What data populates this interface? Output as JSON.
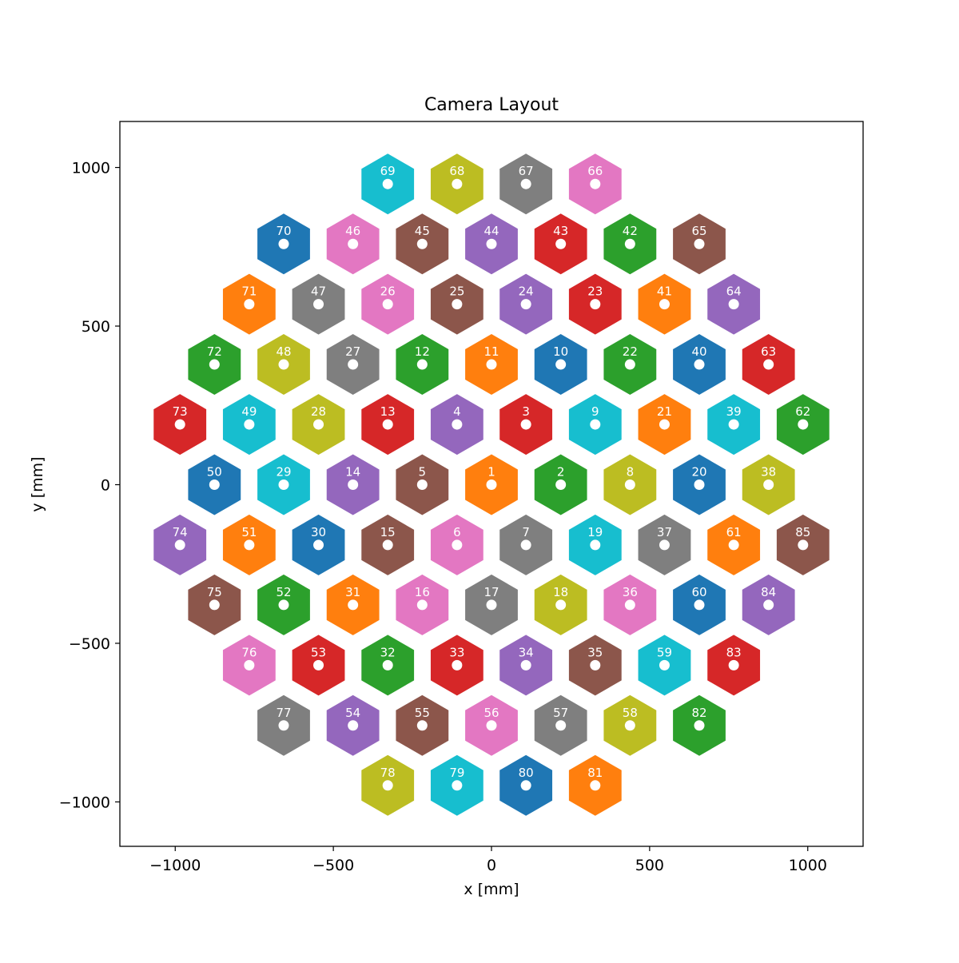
{
  "chart_data": {
    "type": "scatter",
    "title": "Camera Layout",
    "xlabel": "x [mm]",
    "ylabel": "y [mm]",
    "xlim": [
      -1175,
      1175
    ],
    "ylim": [
      -1140,
      1145
    ],
    "xticks": [
      -1000,
      -500,
      0,
      500,
      1000
    ],
    "yticks": [
      -1000,
      -500,
      0,
      500,
      1000
    ],
    "xtick_labels": [
      "−1000",
      "−500",
      "0",
      "500",
      "1000"
    ],
    "ytick_labels": [
      "−1000",
      "−500",
      "0",
      "500",
      "1000"
    ],
    "grid": false,
    "marker_shape": "hexagon",
    "marker_center_color": "#ffffff",
    "pixels": [
      {
        "id": "1",
        "x": 0,
        "y": 0,
        "color": "#ff7f0e"
      },
      {
        "id": "2",
        "x": 219,
        "y": 0,
        "color": "#2ca02c"
      },
      {
        "id": "3",
        "x": 109,
        "y": 190,
        "color": "#d62728"
      },
      {
        "id": "4",
        "x": -109,
        "y": 190,
        "color": "#9467bd"
      },
      {
        "id": "5",
        "x": -219,
        "y": 0,
        "color": "#8c564b"
      },
      {
        "id": "6",
        "x": -109,
        "y": -190,
        "color": "#e377c2"
      },
      {
        "id": "7",
        "x": 109,
        "y": -190,
        "color": "#7f7f7f"
      },
      {
        "id": "8",
        "x": 438,
        "y": 0,
        "color": "#bcbd22"
      },
      {
        "id": "9",
        "x": 328,
        "y": 190,
        "color": "#17becf"
      },
      {
        "id": "10",
        "x": 219,
        "y": 379,
        "color": "#1f77b4"
      },
      {
        "id": "11",
        "x": 0,
        "y": 379,
        "color": "#ff7f0e"
      },
      {
        "id": "12",
        "x": -219,
        "y": 379,
        "color": "#2ca02c"
      },
      {
        "id": "13",
        "x": -328,
        "y": 190,
        "color": "#d62728"
      },
      {
        "id": "14",
        "x": -438,
        "y": 0,
        "color": "#9467bd"
      },
      {
        "id": "15",
        "x": -328,
        "y": -190,
        "color": "#8c564b"
      },
      {
        "id": "16",
        "x": -219,
        "y": -379,
        "color": "#e377c2"
      },
      {
        "id": "17",
        "x": 0,
        "y": -379,
        "color": "#7f7f7f"
      },
      {
        "id": "18",
        "x": 219,
        "y": -379,
        "color": "#bcbd22"
      },
      {
        "id": "19",
        "x": 328,
        "y": -190,
        "color": "#17becf"
      },
      {
        "id": "20",
        "x": 657,
        "y": 0,
        "color": "#1f77b4"
      },
      {
        "id": "21",
        "x": 547,
        "y": 190,
        "color": "#ff7f0e"
      },
      {
        "id": "22",
        "x": 438,
        "y": 379,
        "color": "#2ca02c"
      },
      {
        "id": "23",
        "x": 328,
        "y": 569,
        "color": "#d62728"
      },
      {
        "id": "24",
        "x": 109,
        "y": 569,
        "color": "#9467bd"
      },
      {
        "id": "25",
        "x": -109,
        "y": 569,
        "color": "#8c564b"
      },
      {
        "id": "26",
        "x": -328,
        "y": 569,
        "color": "#e377c2"
      },
      {
        "id": "27",
        "x": -438,
        "y": 379,
        "color": "#7f7f7f"
      },
      {
        "id": "28",
        "x": -547,
        "y": 190,
        "color": "#bcbd22"
      },
      {
        "id": "29",
        "x": -657,
        "y": 0,
        "color": "#17becf"
      },
      {
        "id": "30",
        "x": -547,
        "y": -190,
        "color": "#1f77b4"
      },
      {
        "id": "31",
        "x": -438,
        "y": -379,
        "color": "#ff7f0e"
      },
      {
        "id": "32",
        "x": -328,
        "y": -569,
        "color": "#2ca02c"
      },
      {
        "id": "33",
        "x": -109,
        "y": -569,
        "color": "#d62728"
      },
      {
        "id": "34",
        "x": 109,
        "y": -569,
        "color": "#9467bd"
      },
      {
        "id": "35",
        "x": 328,
        "y": -569,
        "color": "#8c564b"
      },
      {
        "id": "36",
        "x": 438,
        "y": -379,
        "color": "#e377c2"
      },
      {
        "id": "37",
        "x": 547,
        "y": -190,
        "color": "#7f7f7f"
      },
      {
        "id": "38",
        "x": 876,
        "y": 0,
        "color": "#bcbd22"
      },
      {
        "id": "39",
        "x": 766,
        "y": 190,
        "color": "#17becf"
      },
      {
        "id": "40",
        "x": 657,
        "y": 379,
        "color": "#1f77b4"
      },
      {
        "id": "41",
        "x": 547,
        "y": 569,
        "color": "#ff7f0e"
      },
      {
        "id": "42",
        "x": 438,
        "y": 759,
        "color": "#2ca02c"
      },
      {
        "id": "43",
        "x": 219,
        "y": 759,
        "color": "#d62728"
      },
      {
        "id": "44",
        "x": 0,
        "y": 759,
        "color": "#9467bd"
      },
      {
        "id": "45",
        "x": -219,
        "y": 759,
        "color": "#8c564b"
      },
      {
        "id": "46",
        "x": -438,
        "y": 759,
        "color": "#e377c2"
      },
      {
        "id": "47",
        "x": -547,
        "y": 569,
        "color": "#7f7f7f"
      },
      {
        "id": "48",
        "x": -657,
        "y": 379,
        "color": "#bcbd22"
      },
      {
        "id": "49",
        "x": -766,
        "y": 190,
        "color": "#17becf"
      },
      {
        "id": "50",
        "x": -876,
        "y": 0,
        "color": "#1f77b4"
      },
      {
        "id": "51",
        "x": -766,
        "y": -190,
        "color": "#ff7f0e"
      },
      {
        "id": "52",
        "x": -657,
        "y": -379,
        "color": "#2ca02c"
      },
      {
        "id": "53",
        "x": -547,
        "y": -569,
        "color": "#d62728"
      },
      {
        "id": "54",
        "x": -438,
        "y": -759,
        "color": "#9467bd"
      },
      {
        "id": "55",
        "x": -219,
        "y": -759,
        "color": "#8c564b"
      },
      {
        "id": "56",
        "x": 0,
        "y": -759,
        "color": "#e377c2"
      },
      {
        "id": "57",
        "x": 219,
        "y": -759,
        "color": "#7f7f7f"
      },
      {
        "id": "58",
        "x": 438,
        "y": -759,
        "color": "#bcbd22"
      },
      {
        "id": "59",
        "x": 547,
        "y": -569,
        "color": "#17becf"
      },
      {
        "id": "60",
        "x": 657,
        "y": -379,
        "color": "#1f77b4"
      },
      {
        "id": "61",
        "x": 766,
        "y": -190,
        "color": "#ff7f0e"
      },
      {
        "id": "62",
        "x": 985,
        "y": 190,
        "color": "#2ca02c"
      },
      {
        "id": "63",
        "x": 876,
        "y": 379,
        "color": "#d62728"
      },
      {
        "id": "64",
        "x": 766,
        "y": 569,
        "color": "#9467bd"
      },
      {
        "id": "65",
        "x": 657,
        "y": 759,
        "color": "#8c564b"
      },
      {
        "id": "66",
        "x": 328,
        "y": 948,
        "color": "#e377c2"
      },
      {
        "id": "67",
        "x": 109,
        "y": 948,
        "color": "#7f7f7f"
      },
      {
        "id": "68",
        "x": -109,
        "y": 948,
        "color": "#bcbd22"
      },
      {
        "id": "69",
        "x": -328,
        "y": 948,
        "color": "#17becf"
      },
      {
        "id": "70",
        "x": -657,
        "y": 759,
        "color": "#1f77b4"
      },
      {
        "id": "71",
        "x": -766,
        "y": 569,
        "color": "#ff7f0e"
      },
      {
        "id": "72",
        "x": -876,
        "y": 379,
        "color": "#2ca02c"
      },
      {
        "id": "73",
        "x": -985,
        "y": 190,
        "color": "#d62728"
      },
      {
        "id": "74",
        "x": -985,
        "y": -190,
        "color": "#9467bd"
      },
      {
        "id": "75",
        "x": -876,
        "y": -379,
        "color": "#8c564b"
      },
      {
        "id": "76",
        "x": -766,
        "y": -569,
        "color": "#e377c2"
      },
      {
        "id": "77",
        "x": -657,
        "y": -759,
        "color": "#7f7f7f"
      },
      {
        "id": "78",
        "x": -328,
        "y": -948,
        "color": "#bcbd22"
      },
      {
        "id": "79",
        "x": -109,
        "y": -948,
        "color": "#17becf"
      },
      {
        "id": "80",
        "x": 109,
        "y": -948,
        "color": "#1f77b4"
      },
      {
        "id": "81",
        "x": 328,
        "y": -948,
        "color": "#ff7f0e"
      },
      {
        "id": "82",
        "x": 657,
        "y": -759,
        "color": "#2ca02c"
      },
      {
        "id": "83",
        "x": 766,
        "y": -569,
        "color": "#d62728"
      },
      {
        "id": "84",
        "x": 876,
        "y": -379,
        "color": "#9467bd"
      },
      {
        "id": "85",
        "x": 985,
        "y": -190,
        "color": "#8c564b"
      }
    ]
  }
}
